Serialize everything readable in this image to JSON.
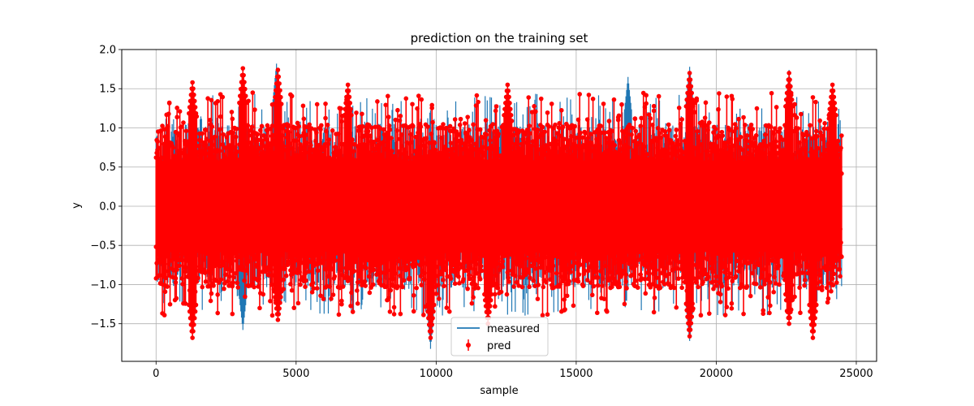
{
  "chart_data": {
    "type": "line",
    "title": "prediction on the training set",
    "xlabel": "sample",
    "ylabel": "y",
    "xlim": [
      -1225,
      25725
    ],
    "ylim": [
      -1.98,
      2.0
    ],
    "xticks": [
      0,
      5000,
      10000,
      15000,
      20000,
      25000
    ],
    "xtick_labels": [
      "0",
      "5000",
      "10000",
      "15000",
      "20000",
      "25000"
    ],
    "yticks": [
      -1.5,
      -1.0,
      -0.5,
      0.0,
      0.5,
      1.0,
      1.5,
      2.0
    ],
    "ytick_labels": [
      "−1.5",
      "−1.0",
      "−0.5",
      "0.0",
      "0.5",
      "1.0",
      "1.5",
      "2.0"
    ],
    "grid": true,
    "legend_position": "bottom-center",
    "series": [
      {
        "name": "measured",
        "kind": "line",
        "color": "#1f77b4",
        "n_samples": 24500,
        "value_range": [
          -1.82,
          1.82
        ],
        "peaks": [
          {
            "x": 4300,
            "y": 1.82
          },
          {
            "x": 3100,
            "y": -1.58
          },
          {
            "x": 9800,
            "y": -1.82
          },
          {
            "x": 16850,
            "y": 1.65
          },
          {
            "x": 19050,
            "y": 1.78
          },
          {
            "x": 19050,
            "y": -1.72
          },
          {
            "x": 22600,
            "y": 1.74
          },
          {
            "x": 23450,
            "y": -1.7
          }
        ]
      },
      {
        "name": "pred",
        "kind": "errorbar",
        "color": "#ff0000",
        "marker": "o",
        "n_samples": 24500,
        "value_range": [
          -1.7,
          1.76
        ],
        "peaks": [
          {
            "x": 1300,
            "y": 1.58
          },
          {
            "x": 1300,
            "y": -1.68
          },
          {
            "x": 3100,
            "y": 1.76
          },
          {
            "x": 4350,
            "y": 1.74
          },
          {
            "x": 4350,
            "y": -1.45
          },
          {
            "x": 6850,
            "y": 1.55
          },
          {
            "x": 9800,
            "y": -1.68
          },
          {
            "x": 11850,
            "y": -1.5
          },
          {
            "x": 12550,
            "y": 1.55
          },
          {
            "x": 19050,
            "y": 1.7
          },
          {
            "x": 19050,
            "y": -1.66
          },
          {
            "x": 22600,
            "y": 1.7
          },
          {
            "x": 22600,
            "y": -1.5
          },
          {
            "x": 23450,
            "y": -1.68
          },
          {
            "x": 24150,
            "y": 1.55
          }
        ]
      }
    ]
  }
}
